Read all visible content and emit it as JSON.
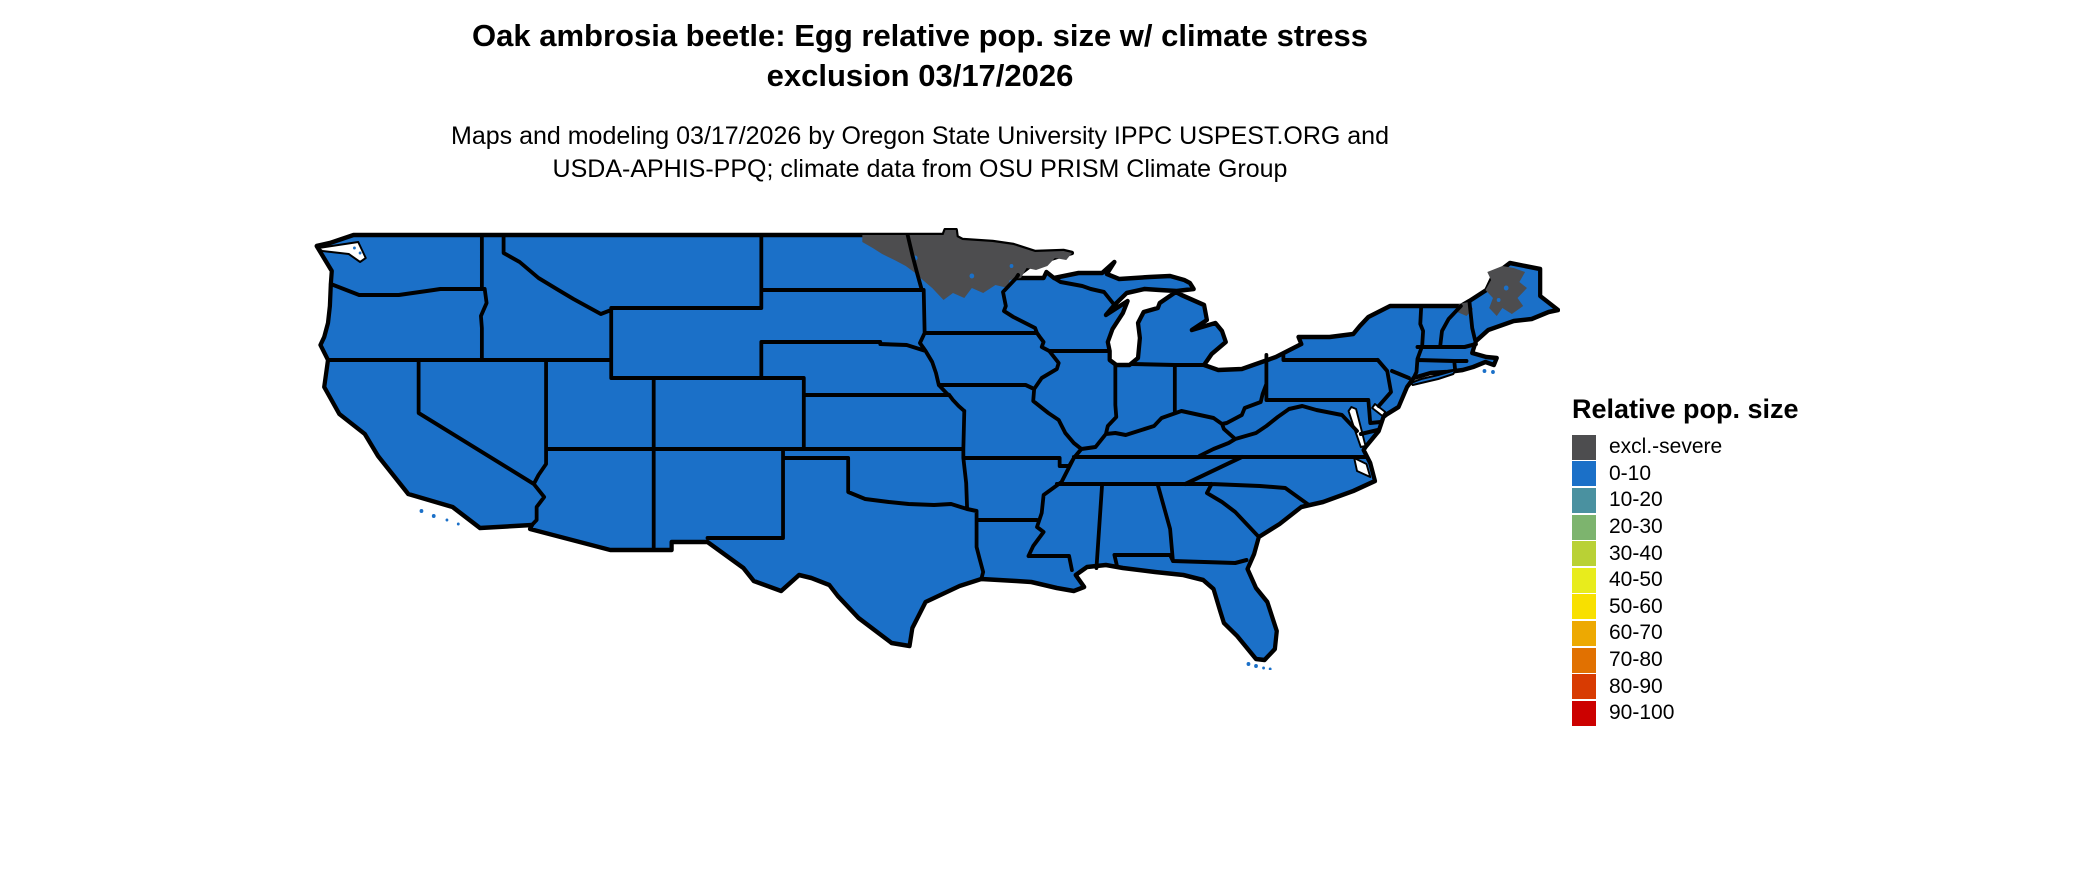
{
  "header": {
    "title_line1": "Oak ambrosia beetle: Egg relative pop. size w/ climate stress",
    "title_line2": "exclusion 03/17/2026",
    "subtitle_line1": "Maps and modeling 03/17/2026 by Oregon State University IPPC USPEST.ORG and",
    "subtitle_line2": "USDA-APHIS-PPQ; climate data from OSU PRISM Climate Group"
  },
  "legend": {
    "title": "Relative pop. size",
    "items": [
      {
        "label": "excl.-severe",
        "color": "#4d4d4f"
      },
      {
        "label": "0-10",
        "color": "#1b70c8"
      },
      {
        "label": "10-20",
        "color": "#4a91a0"
      },
      {
        "label": "20-30",
        "color": "#7db46e"
      },
      {
        "label": "30-40",
        "color": "#b9d135"
      },
      {
        "label": "40-50",
        "color": "#e8ec1c"
      },
      {
        "label": "50-60",
        "color": "#f8e000"
      },
      {
        "label": "60-70",
        "color": "#eda902"
      },
      {
        "label": "70-80",
        "color": "#e17101"
      },
      {
        "label": "80-90",
        "color": "#d83b02"
      },
      {
        "label": "90-100",
        "color": "#cc0100"
      }
    ]
  },
  "colors": {
    "map_fill": "#1b70c8",
    "exclusion_fill": "#4d4d4f",
    "border": "#000000",
    "water": "#ffffff"
  },
  "map": {
    "region": "Continental United States with state boundaries",
    "all_states_value_class": "0-10",
    "excluded_severe_areas": [
      "northern Minnesota and northeastern North Dakota",
      "northern and western Maine",
      "northern New Hampshire / Vermont border area"
    ]
  }
}
